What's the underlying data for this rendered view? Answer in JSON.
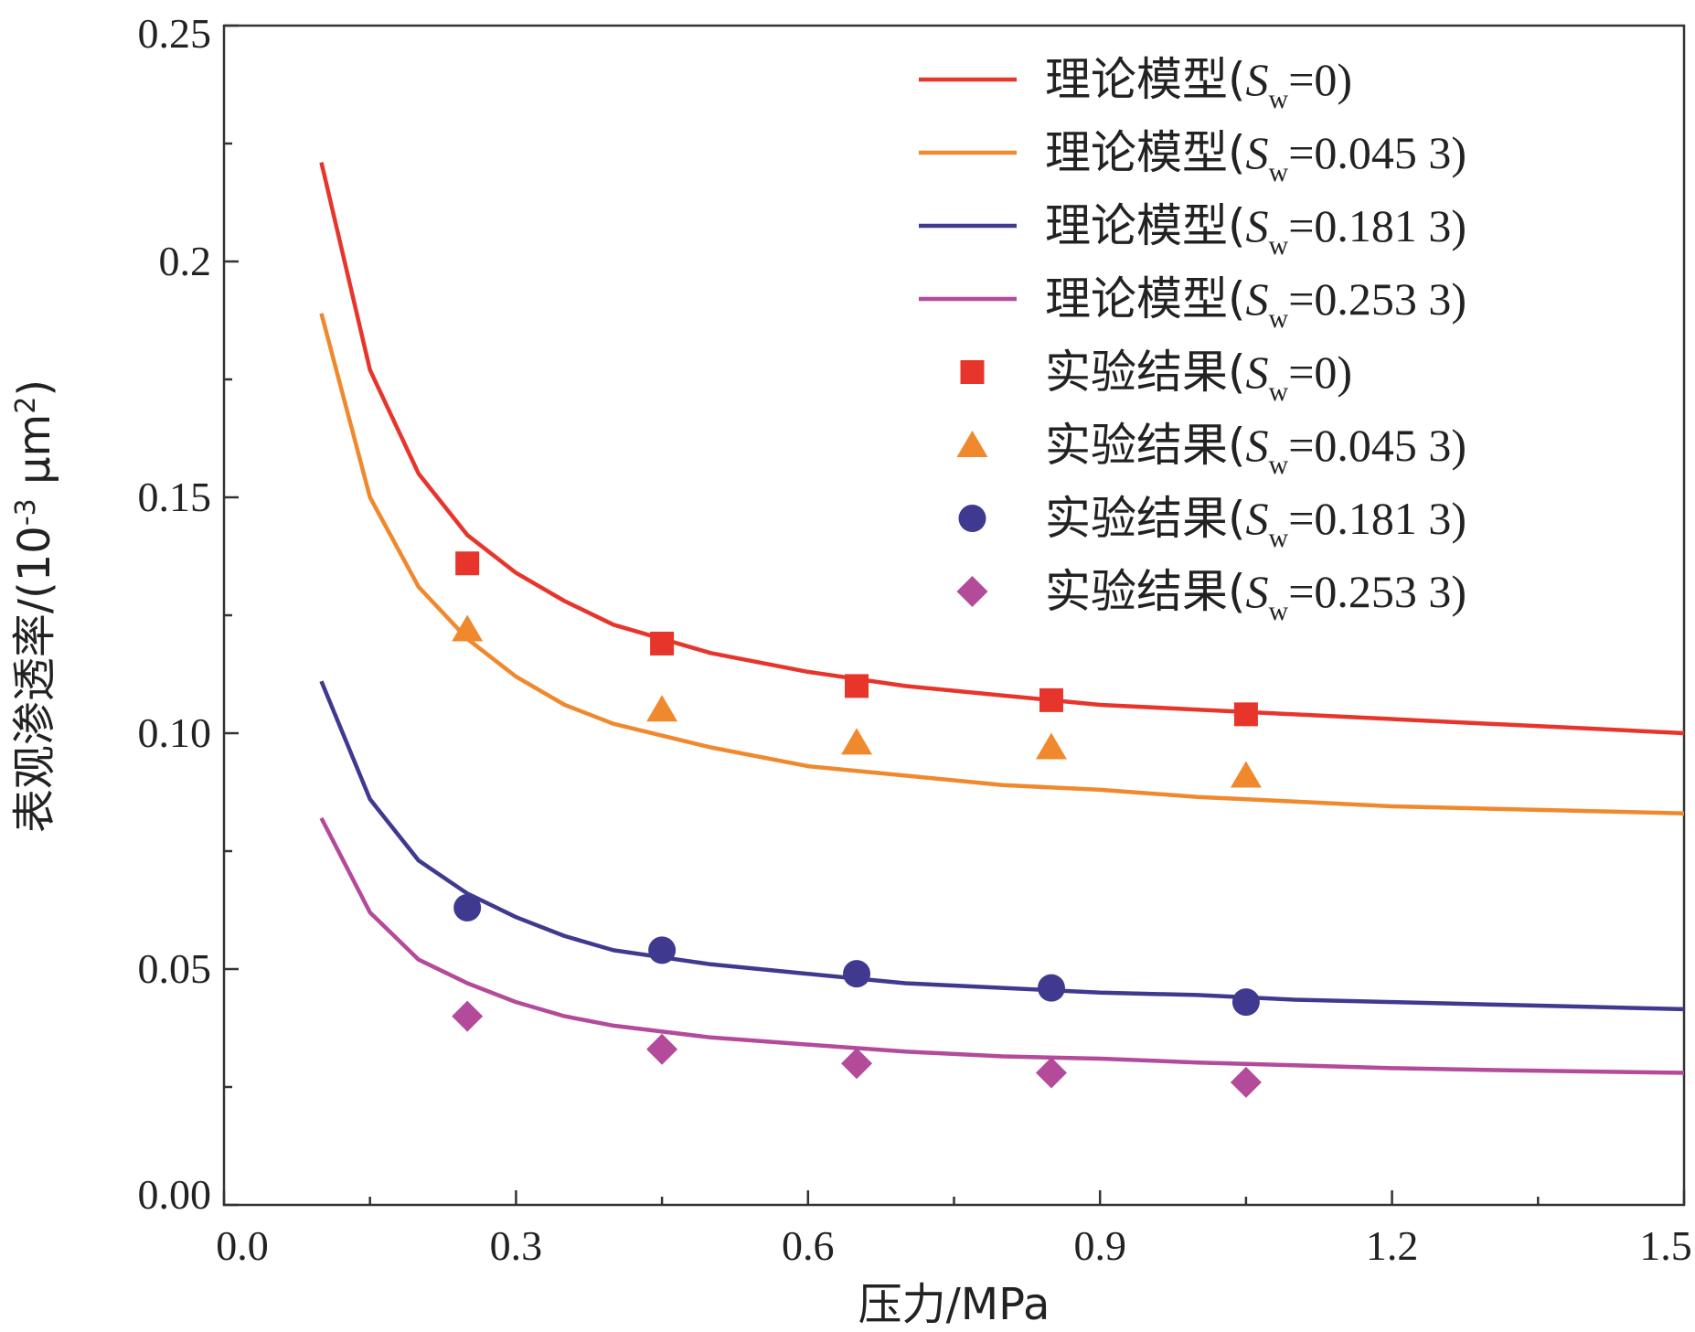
{
  "chart_data": {
    "type": "line",
    "xlabel": "压力/MPa",
    "ylabel_main": "表观渗透率/(10",
    "ylabel_sup1": "-3",
    "ylabel_mid": " μm",
    "ylabel_sup2": "2",
    "ylabel_end": ")",
    "xlim": [
      0.0,
      1.5
    ],
    "ylim": [
      0.0,
      0.25
    ],
    "x_ticks": [
      0.0,
      0.3,
      0.6,
      0.9,
      1.2,
      1.5
    ],
    "x_tick_labels": [
      "0.0",
      "0.3",
      "0.6",
      "0.9",
      "1.2",
      "1.5"
    ],
    "y_ticks": [
      0.0,
      0.05,
      0.1,
      0.15,
      0.2,
      0.25
    ],
    "y_tick_labels": [
      "0.00",
      "0.05",
      "0.10",
      "0.15",
      "0.2",
      "0.25"
    ],
    "grid": false,
    "legend_position": "top-right",
    "series": [
      {
        "name": "理论模型",
        "sw": "0",
        "kind": "line",
        "color": "#e8352c",
        "points": [
          [
            0.1,
            0.221
          ],
          [
            0.15,
            0.177
          ],
          [
            0.2,
            0.155
          ],
          [
            0.25,
            0.142
          ],
          [
            0.3,
            0.134
          ],
          [
            0.35,
            0.128
          ],
          [
            0.4,
            0.123
          ],
          [
            0.5,
            0.117
          ],
          [
            0.6,
            0.113
          ],
          [
            0.7,
            0.11
          ],
          [
            0.8,
            0.108
          ],
          [
            0.9,
            0.106
          ],
          [
            1.0,
            0.105
          ],
          [
            1.1,
            0.104
          ],
          [
            1.2,
            0.103
          ],
          [
            1.3,
            0.102
          ],
          [
            1.4,
            0.101
          ],
          [
            1.5,
            0.1
          ]
        ]
      },
      {
        "name": "理论模型",
        "sw": "0.045 3",
        "kind": "line",
        "color": "#f0892d",
        "points": [
          [
            0.1,
            0.189
          ],
          [
            0.15,
            0.15
          ],
          [
            0.2,
            0.131
          ],
          [
            0.25,
            0.12
          ],
          [
            0.3,
            0.112
          ],
          [
            0.35,
            0.106
          ],
          [
            0.4,
            0.102
          ],
          [
            0.5,
            0.097
          ],
          [
            0.6,
            0.093
          ],
          [
            0.7,
            0.091
          ],
          [
            0.8,
            0.089
          ],
          [
            0.9,
            0.088
          ],
          [
            1.0,
            0.0865
          ],
          [
            1.1,
            0.0855
          ],
          [
            1.2,
            0.0845
          ],
          [
            1.3,
            0.084
          ],
          [
            1.4,
            0.0835
          ],
          [
            1.5,
            0.083
          ]
        ]
      },
      {
        "name": "理论模型",
        "sw": "0.181 3",
        "kind": "line",
        "color": "#3f3a8f",
        "points": [
          [
            0.1,
            0.111
          ],
          [
            0.15,
            0.086
          ],
          [
            0.2,
            0.073
          ],
          [
            0.25,
            0.066
          ],
          [
            0.3,
            0.061
          ],
          [
            0.35,
            0.057
          ],
          [
            0.4,
            0.054
          ],
          [
            0.5,
            0.051
          ],
          [
            0.6,
            0.049
          ],
          [
            0.7,
            0.047
          ],
          [
            0.8,
            0.046
          ],
          [
            0.9,
            0.045
          ],
          [
            1.0,
            0.0445
          ],
          [
            1.1,
            0.0435
          ],
          [
            1.2,
            0.043
          ],
          [
            1.3,
            0.0425
          ],
          [
            1.4,
            0.042
          ],
          [
            1.5,
            0.0415
          ]
        ]
      },
      {
        "name": "理论模型",
        "sw": "0.253 3",
        "kind": "line",
        "color": "#b44a9a",
        "points": [
          [
            0.1,
            0.082
          ],
          [
            0.15,
            0.062
          ],
          [
            0.2,
            0.052
          ],
          [
            0.25,
            0.047
          ],
          [
            0.3,
            0.043
          ],
          [
            0.35,
            0.04
          ],
          [
            0.4,
            0.038
          ],
          [
            0.5,
            0.0355
          ],
          [
            0.6,
            0.034
          ],
          [
            0.7,
            0.0325
          ],
          [
            0.8,
            0.0315
          ],
          [
            0.9,
            0.031
          ],
          [
            1.0,
            0.0302
          ],
          [
            1.1,
            0.0296
          ],
          [
            1.2,
            0.029
          ],
          [
            1.3,
            0.0286
          ],
          [
            1.4,
            0.0283
          ],
          [
            1.5,
            0.028
          ]
        ]
      },
      {
        "name": "实验结果",
        "sw": "0",
        "kind": "scatter",
        "marker": "square",
        "color": "#e8352c",
        "x": [
          0.25,
          0.45,
          0.65,
          0.85,
          1.05
        ],
        "y": [
          0.136,
          0.119,
          0.11,
          0.107,
          0.104
        ]
      },
      {
        "name": "实验结果",
        "sw": "0.045 3",
        "kind": "scatter",
        "marker": "triangle",
        "color": "#f0892d",
        "x": [
          0.25,
          0.45,
          0.65,
          0.85,
          1.05
        ],
        "y": [
          0.122,
          0.105,
          0.098,
          0.097,
          0.091
        ]
      },
      {
        "name": "实验结果",
        "sw": "0.181 3",
        "kind": "scatter",
        "marker": "circle",
        "color": "#3f3a8f",
        "x": [
          0.25,
          0.45,
          0.65,
          0.85,
          1.05
        ],
        "y": [
          0.063,
          0.054,
          0.049,
          0.046,
          0.043
        ]
      },
      {
        "name": "实验结果",
        "sw": "0.253 3",
        "kind": "scatter",
        "marker": "diamond",
        "color": "#b44a9a",
        "x": [
          0.25,
          0.45,
          0.65,
          0.85,
          1.05
        ],
        "y": [
          0.04,
          0.033,
          0.03,
          0.028,
          0.026
        ]
      }
    ],
    "legend": {
      "prefix": "(",
      "symbol": "S",
      "subscript": "w",
      "equals": "=",
      "suffix": ")"
    }
  }
}
